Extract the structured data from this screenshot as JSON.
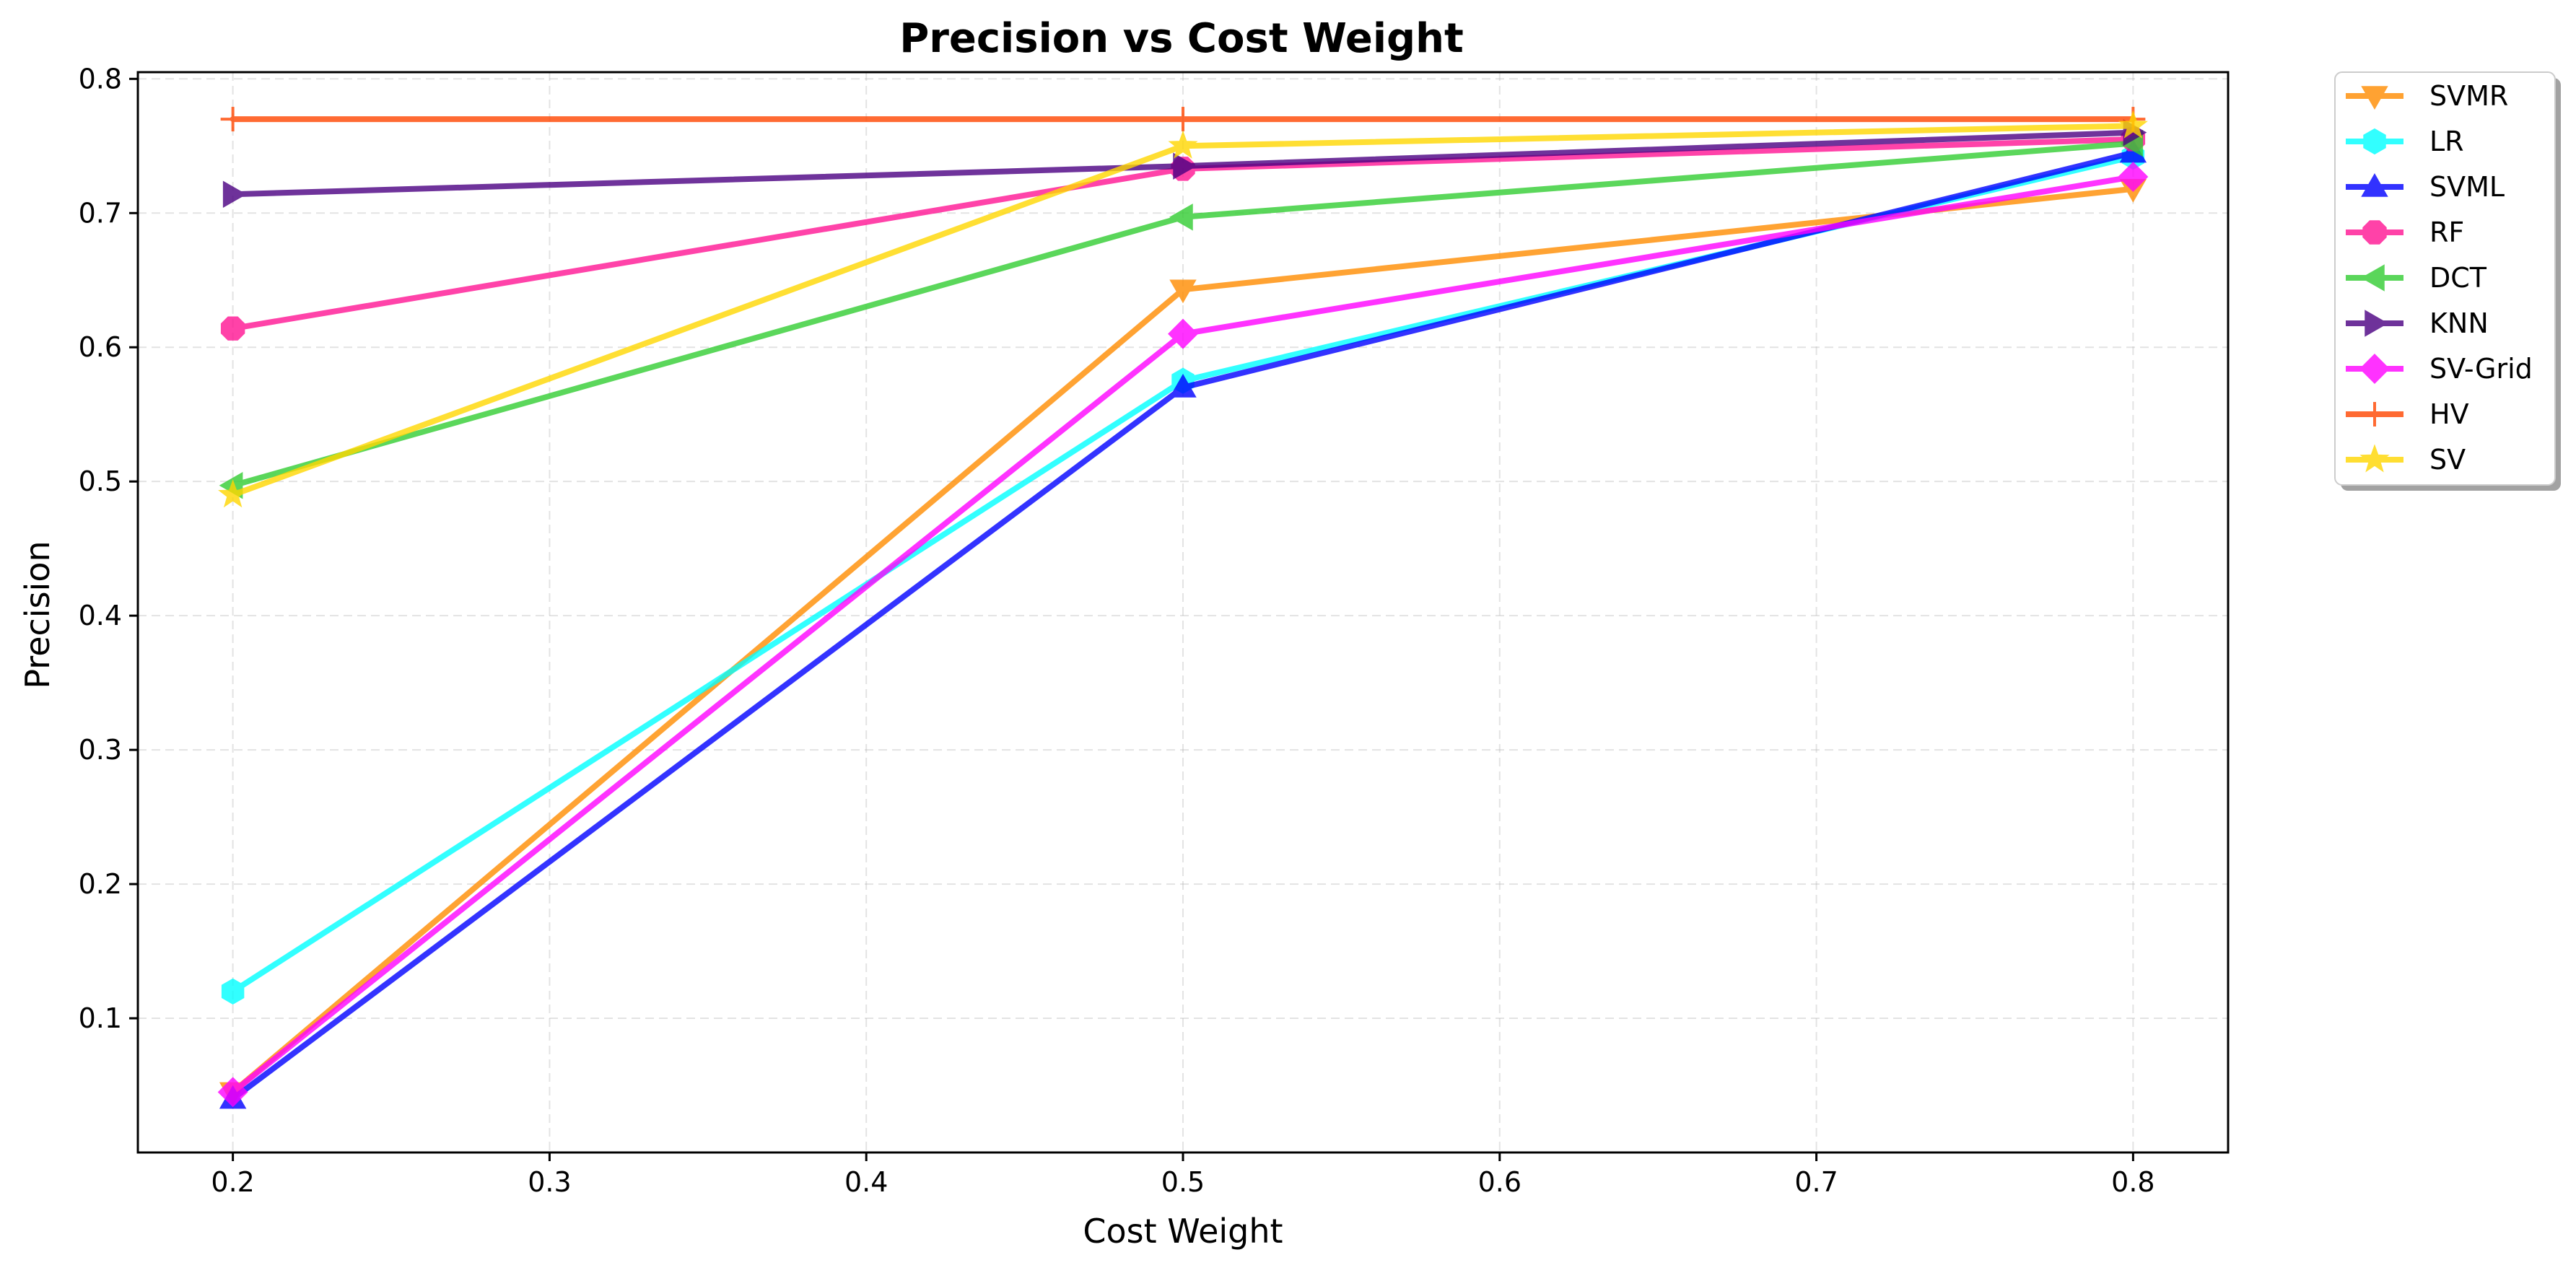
{
  "chart_data": {
    "type": "line",
    "title": "Precision vs Cost Weight",
    "xlabel": "Cost Weight",
    "ylabel": "Precision",
    "xlim": [
      0.17,
      0.83
    ],
    "ylim": [
      0.0,
      0.805
    ],
    "xticks": [
      "0.2",
      "0.3",
      "0.4",
      "0.5",
      "0.6",
      "0.7",
      "0.8"
    ],
    "yticks": [
      "0.1",
      "0.2",
      "0.3",
      "0.4",
      "0.5",
      "0.6",
      "0.7",
      "0.8"
    ],
    "grid": true,
    "legend_position": "outside-top-right",
    "x": [
      0.2,
      0.5,
      0.8
    ],
    "series": [
      {
        "name": "SVMR",
        "values": [
          0.045,
          0.643,
          0.718
        ],
        "color": "#ff8c00",
        "marker": "triangle-down"
      },
      {
        "name": "LR",
        "values": [
          0.12,
          0.575,
          0.742
        ],
        "color": "#00ffff",
        "marker": "hexagon"
      },
      {
        "name": "SVML",
        "values": [
          0.04,
          0.57,
          0.745
        ],
        "color": "#0000ff",
        "marker": "triangle-up"
      },
      {
        "name": "RF",
        "values": [
          0.614,
          0.733,
          0.755
        ],
        "color": "#ff1493",
        "marker": "octagon"
      },
      {
        "name": "DCT",
        "values": [
          0.497,
          0.697,
          0.752
        ],
        "color": "#32cd32",
        "marker": "triangle-left"
      },
      {
        "name": "KNN",
        "values": [
          0.714,
          0.735,
          0.76
        ],
        "color": "#4b0082",
        "marker": "triangle-right"
      },
      {
        "name": "SV-Grid",
        "values": [
          0.045,
          0.61,
          0.727
        ],
        "color": "#ff00ff",
        "marker": "diamond"
      },
      {
        "name": "HV",
        "values": [
          0.77,
          0.77,
          0.77
        ],
        "color": "#ff4500",
        "marker": "plus"
      },
      {
        "name": "SV",
        "values": [
          0.49,
          0.75,
          0.765
        ],
        "color": "#ffd700",
        "marker": "star"
      }
    ]
  }
}
